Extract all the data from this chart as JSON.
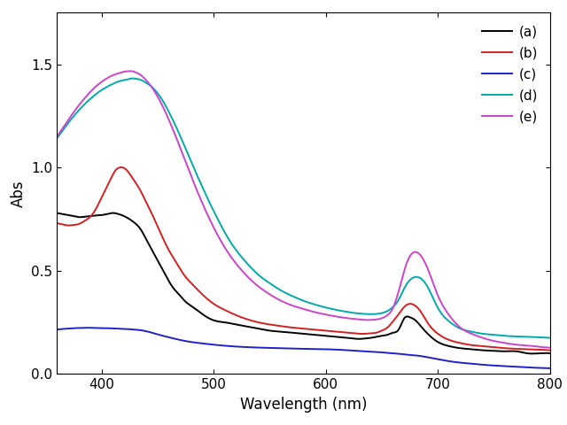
{
  "title": "",
  "xlabel": "Wavelength (nm)",
  "ylabel": "Abs",
  "xlim": [
    360,
    800
  ],
  "ylim": [
    0.0,
    1.75
  ],
  "yticks": [
    0.0,
    0.5,
    1.0,
    1.5
  ],
  "xticks": [
    400,
    500,
    600,
    700,
    800
  ],
  "legend_labels": [
    "(a)",
    "(b)",
    "(c)",
    "(d)",
    "(e)"
  ],
  "colors": [
    "#000000",
    "#d42020",
    "#2020cc",
    "#00aaaa",
    "#cc44cc"
  ],
  "linewidth": 1.4,
  "curves": {
    "a": {
      "x": [
        360,
        365,
        370,
        375,
        380,
        385,
        390,
        395,
        400,
        405,
        410,
        415,
        420,
        425,
        430,
        435,
        440,
        445,
        450,
        455,
        460,
        465,
        470,
        475,
        480,
        490,
        500,
        510,
        520,
        530,
        540,
        550,
        560,
        570,
        580,
        590,
        600,
        610,
        620,
        630,
        635,
        640,
        645,
        650,
        655,
        660,
        665,
        670,
        675,
        680,
        685,
        690,
        700,
        710,
        720,
        730,
        740,
        750,
        760,
        770,
        780,
        790,
        800
      ],
      "y": [
        0.78,
        0.775,
        0.77,
        0.765,
        0.76,
        0.762,
        0.765,
        0.768,
        0.77,
        0.775,
        0.78,
        0.775,
        0.765,
        0.75,
        0.73,
        0.7,
        0.65,
        0.6,
        0.55,
        0.5,
        0.45,
        0.41,
        0.38,
        0.35,
        0.33,
        0.29,
        0.26,
        0.25,
        0.24,
        0.23,
        0.22,
        0.21,
        0.205,
        0.2,
        0.195,
        0.19,
        0.185,
        0.18,
        0.175,
        0.17,
        0.172,
        0.175,
        0.18,
        0.185,
        0.19,
        0.2,
        0.215,
        0.27,
        0.275,
        0.26,
        0.23,
        0.2,
        0.155,
        0.135,
        0.125,
        0.12,
        0.115,
        0.112,
        0.11,
        0.11,
        0.1,
        0.1,
        0.1
      ]
    },
    "b": {
      "x": [
        360,
        365,
        370,
        375,
        380,
        385,
        390,
        395,
        400,
        405,
        410,
        413,
        416,
        419,
        422,
        425,
        430,
        435,
        440,
        445,
        450,
        455,
        460,
        465,
        470,
        475,
        480,
        490,
        500,
        510,
        520,
        530,
        540,
        550,
        560,
        570,
        580,
        590,
        600,
        610,
        620,
        625,
        630,
        635,
        640,
        645,
        650,
        655,
        660,
        665,
        670,
        675,
        680,
        685,
        690,
        700,
        710,
        720,
        730,
        740,
        750,
        760,
        770,
        780,
        790,
        800
      ],
      "y": [
        0.73,
        0.725,
        0.72,
        0.722,
        0.727,
        0.742,
        0.762,
        0.8,
        0.855,
        0.91,
        0.965,
        0.99,
        1.0,
        1.0,
        0.99,
        0.97,
        0.93,
        0.885,
        0.83,
        0.775,
        0.715,
        0.655,
        0.6,
        0.555,
        0.51,
        0.47,
        0.44,
        0.385,
        0.34,
        0.31,
        0.285,
        0.265,
        0.25,
        0.24,
        0.232,
        0.225,
        0.22,
        0.215,
        0.21,
        0.205,
        0.2,
        0.198,
        0.195,
        0.195,
        0.197,
        0.2,
        0.21,
        0.225,
        0.255,
        0.29,
        0.325,
        0.34,
        0.33,
        0.3,
        0.255,
        0.195,
        0.165,
        0.15,
        0.14,
        0.135,
        0.13,
        0.125,
        0.122,
        0.12,
        0.118,
        0.115
      ]
    },
    "c": {
      "x": [
        360,
        365,
        370,
        375,
        380,
        385,
        390,
        395,
        400,
        405,
        410,
        415,
        420,
        425,
        430,
        435,
        440,
        445,
        450,
        460,
        470,
        480,
        490,
        500,
        520,
        540,
        560,
        580,
        600,
        620,
        640,
        650,
        660,
        665,
        670,
        675,
        680,
        690,
        700,
        710,
        720,
        730,
        740,
        760,
        780,
        800
      ],
      "y": [
        0.215,
        0.218,
        0.22,
        0.222,
        0.223,
        0.224,
        0.224,
        0.223,
        0.222,
        0.222,
        0.221,
        0.22,
        0.219,
        0.217,
        0.215,
        0.212,
        0.207,
        0.2,
        0.192,
        0.178,
        0.165,
        0.155,
        0.148,
        0.142,
        0.133,
        0.128,
        0.125,
        0.122,
        0.12,
        0.115,
        0.108,
        0.105,
        0.1,
        0.098,
        0.095,
        0.092,
        0.09,
        0.082,
        0.072,
        0.062,
        0.055,
        0.05,
        0.045,
        0.038,
        0.032,
        0.028
      ]
    },
    "d": {
      "x": [
        360,
        363,
        366,
        369,
        372,
        375,
        378,
        381,
        384,
        387,
        390,
        393,
        396,
        399,
        402,
        405,
        408,
        411,
        414,
        417,
        420,
        423,
        425,
        428,
        431,
        435,
        440,
        445,
        450,
        455,
        460,
        465,
        470,
        475,
        480,
        485,
        490,
        495,
        500,
        510,
        520,
        530,
        540,
        550,
        560,
        570,
        580,
        590,
        600,
        610,
        620,
        625,
        630,
        635,
        640,
        645,
        650,
        655,
        660,
        665,
        670,
        675,
        680,
        685,
        690,
        700,
        710,
        720,
        730,
        740,
        750,
        760,
        770,
        780,
        790,
        800
      ],
      "y": [
        1.14,
        1.162,
        1.185,
        1.207,
        1.228,
        1.248,
        1.267,
        1.285,
        1.302,
        1.318,
        1.333,
        1.347,
        1.36,
        1.372,
        1.382,
        1.392,
        1.4,
        1.408,
        1.415,
        1.42,
        1.424,
        1.427,
        1.43,
        1.432,
        1.43,
        1.425,
        1.41,
        1.39,
        1.36,
        1.32,
        1.27,
        1.215,
        1.155,
        1.092,
        1.03,
        0.965,
        0.905,
        0.845,
        0.79,
        0.685,
        0.6,
        0.535,
        0.48,
        0.44,
        0.405,
        0.378,
        0.355,
        0.337,
        0.322,
        0.31,
        0.3,
        0.296,
        0.293,
        0.291,
        0.29,
        0.291,
        0.295,
        0.305,
        0.325,
        0.36,
        0.415,
        0.455,
        0.47,
        0.462,
        0.43,
        0.32,
        0.255,
        0.22,
        0.205,
        0.195,
        0.19,
        0.185,
        0.182,
        0.18,
        0.178,
        0.175
      ]
    },
    "e": {
      "x": [
        360,
        363,
        366,
        369,
        372,
        375,
        378,
        381,
        384,
        387,
        390,
        393,
        396,
        399,
        402,
        405,
        408,
        411,
        414,
        417,
        420,
        422,
        424,
        426,
        428,
        431,
        435,
        440,
        445,
        450,
        455,
        460,
        465,
        470,
        475,
        480,
        485,
        490,
        495,
        500,
        510,
        520,
        530,
        540,
        550,
        560,
        570,
        580,
        590,
        600,
        610,
        620,
        625,
        630,
        635,
        640,
        645,
        650,
        655,
        660,
        663,
        666,
        669,
        672,
        675,
        678,
        681,
        685,
        690,
        700,
        710,
        720,
        730,
        740,
        750,
        760,
        770,
        780,
        790,
        800
      ],
      "y": [
        1.15,
        1.172,
        1.196,
        1.22,
        1.244,
        1.267,
        1.289,
        1.31,
        1.33,
        1.349,
        1.367,
        1.383,
        1.398,
        1.411,
        1.423,
        1.433,
        1.442,
        1.449,
        1.455,
        1.46,
        1.464,
        1.466,
        1.467,
        1.467,
        1.466,
        1.46,
        1.448,
        1.422,
        1.388,
        1.344,
        1.292,
        1.232,
        1.167,
        1.098,
        1.028,
        0.958,
        0.89,
        0.826,
        0.766,
        0.71,
        0.612,
        0.535,
        0.473,
        0.424,
        0.386,
        0.355,
        0.332,
        0.315,
        0.3,
        0.288,
        0.278,
        0.27,
        0.267,
        0.264,
        0.262,
        0.262,
        0.264,
        0.27,
        0.285,
        0.32,
        0.365,
        0.42,
        0.48,
        0.535,
        0.57,
        0.588,
        0.59,
        0.572,
        0.522,
        0.38,
        0.285,
        0.225,
        0.195,
        0.175,
        0.16,
        0.15,
        0.142,
        0.138,
        0.132,
        0.128
      ]
    }
  }
}
